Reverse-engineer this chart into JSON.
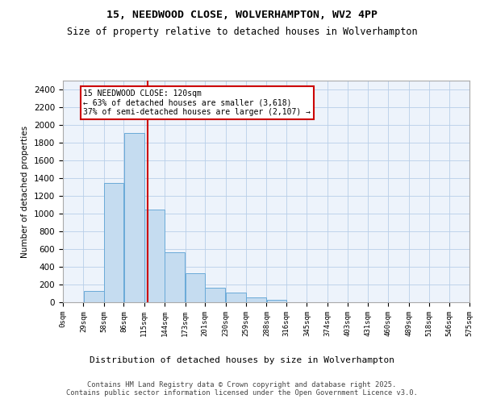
{
  "title1": "15, NEEDWOOD CLOSE, WOLVERHAMPTON, WV2 4PP",
  "title2": "Size of property relative to detached houses in Wolverhampton",
  "xlabel": "Distribution of detached houses by size in Wolverhampton",
  "ylabel": "Number of detached properties",
  "footer1": "Contains HM Land Registry data © Crown copyright and database right 2025.",
  "footer2": "Contains public sector information licensed under the Open Government Licence v3.0.",
  "bar_color": "#c5dcf0",
  "bar_edge_color": "#6aaad8",
  "bg_color": "#edf3fb",
  "grid_color": "#b8cfe8",
  "annotation_text": "15 NEEDWOOD CLOSE: 120sqm\n← 63% of detached houses are smaller (3,618)\n37% of semi-detached houses are larger (2,107) →",
  "vline_x": 120,
  "vline_color": "#cc0000",
  "ylim": [
    0,
    2500
  ],
  "yticks": [
    0,
    200,
    400,
    600,
    800,
    1000,
    1200,
    1400,
    1600,
    1800,
    2000,
    2200,
    2400
  ],
  "bin_edges": [
    0,
    29,
    58,
    86,
    115,
    144,
    173,
    201,
    230,
    259,
    288,
    316,
    345,
    374,
    403,
    431,
    460,
    489,
    518,
    546,
    575
  ],
  "bar_heights": [
    0,
    125,
    1350,
    1910,
    1050,
    560,
    330,
    165,
    105,
    55,
    30,
    0,
    0,
    0,
    0,
    0,
    0,
    0,
    0,
    0
  ],
  "tick_labels": [
    "0sqm",
    "29sqm",
    "58sqm",
    "86sqm",
    "115sqm",
    "144sqm",
    "173sqm",
    "201sqm",
    "230sqm",
    "259sqm",
    "288sqm",
    "316sqm",
    "345sqm",
    "374sqm",
    "403sqm",
    "431sqm",
    "460sqm",
    "489sqm",
    "518sqm",
    "546sqm",
    "575sqm"
  ]
}
